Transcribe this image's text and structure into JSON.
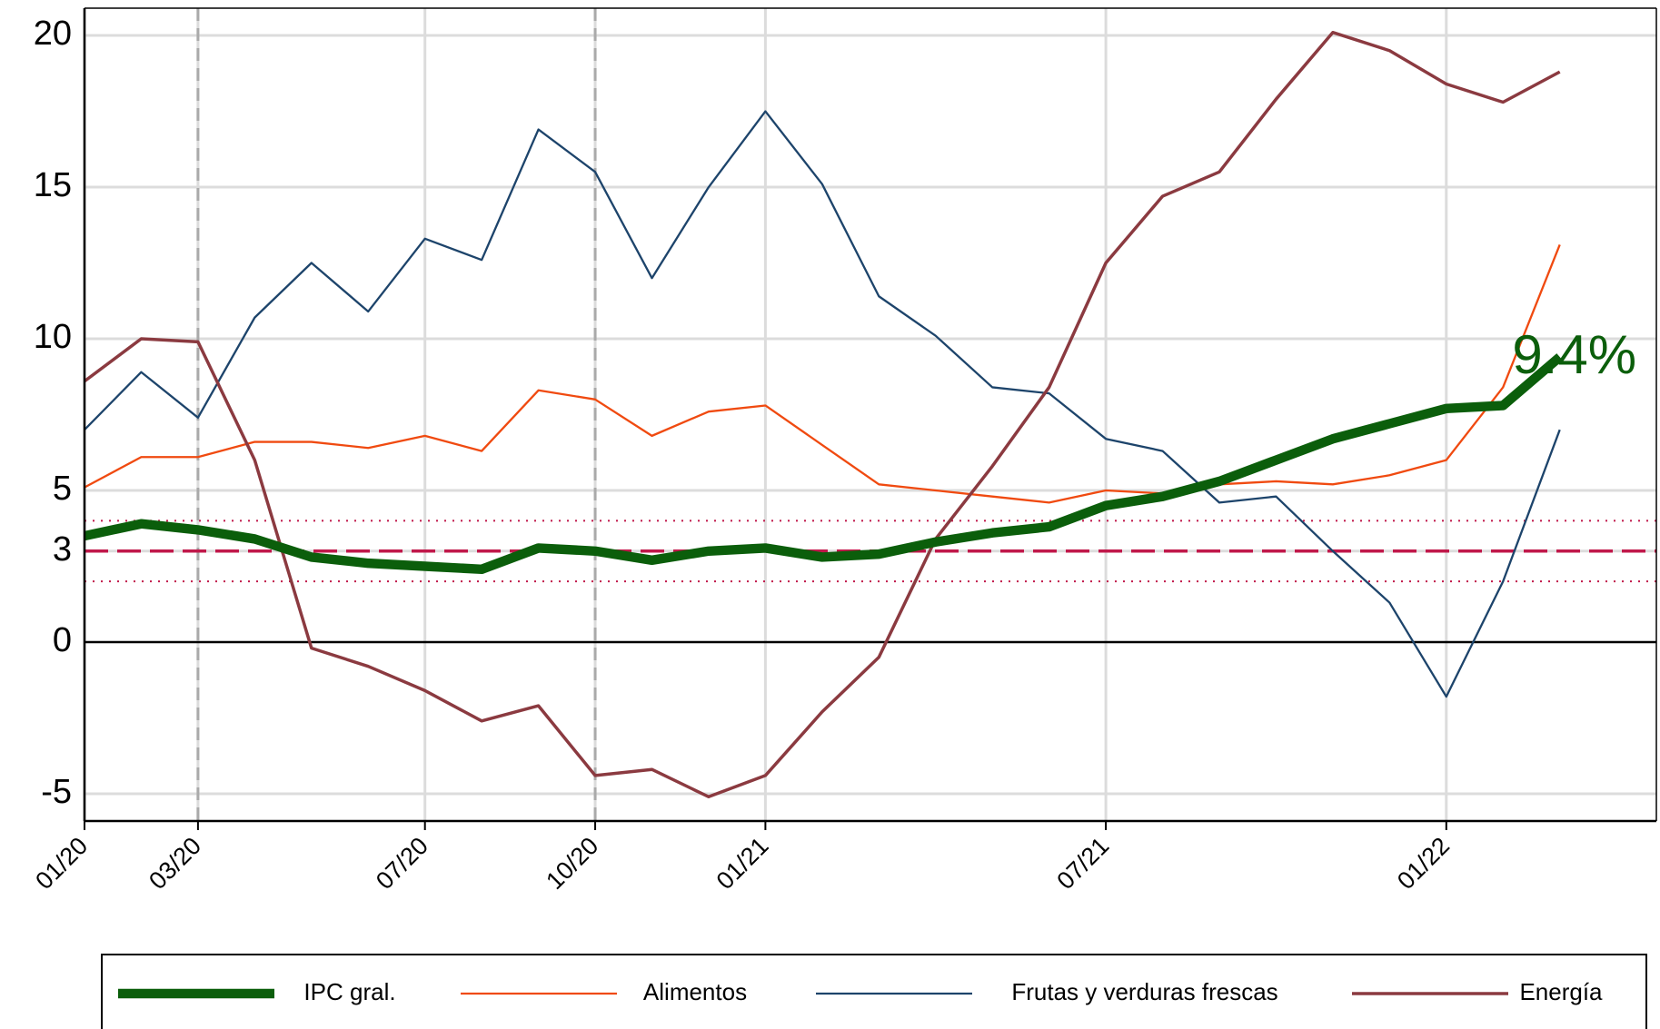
{
  "chart_data": {
    "type": "line",
    "categories": [
      "01/20",
      null,
      "03/20",
      null,
      null,
      null,
      "07/20",
      null,
      null,
      "10/20",
      null,
      null,
      "01/21",
      null,
      null,
      null,
      null,
      null,
      "07/21",
      null,
      null,
      null,
      null,
      null,
      "01/22",
      null,
      null
    ],
    "series": [
      {
        "name": "IPC gral.",
        "color": "#0b5e0b",
        "width": 9,
        "values": [
          3.5,
          3.9,
          3.7,
          3.4,
          2.8,
          2.6,
          2.5,
          2.4,
          3.1,
          3.0,
          2.7,
          3.0,
          3.1,
          2.8,
          2.9,
          3.3,
          3.6,
          3.8,
          4.5,
          4.8,
          5.3,
          6.0,
          6.7,
          7.2,
          7.7,
          7.8,
          9.4
        ]
      },
      {
        "name": "Alimentos",
        "color": "#f04a10",
        "width": 2,
        "values": [
          5.1,
          6.1,
          6.1,
          6.6,
          6.6,
          6.4,
          6.8,
          6.3,
          8.3,
          8.0,
          6.8,
          7.6,
          7.8,
          6.5,
          5.2,
          5.0,
          4.8,
          4.6,
          5.0,
          4.9,
          5.2,
          5.3,
          5.2,
          5.5,
          6.0,
          8.4,
          13.1
        ]
      },
      {
        "name": "Frutas y verduras frescas",
        "color": "#1d446b",
        "width": 2,
        "values": [
          7.0,
          8.9,
          7.4,
          10.7,
          12.5,
          10.9,
          13.3,
          12.6,
          16.9,
          15.5,
          12.0,
          15.0,
          17.5,
          15.1,
          11.4,
          10.1,
          8.4,
          8.2,
          6.7,
          6.3,
          4.6,
          4.8,
          3.0,
          1.3,
          -1.8,
          2.0,
          7.0
        ]
      },
      {
        "name": "Energía",
        "color": "#8b3a40",
        "width": 3,
        "values": [
          8.6,
          10.0,
          9.9,
          6.0,
          -0.2,
          -0.8,
          -1.6,
          -2.6,
          -2.1,
          -4.4,
          -4.2,
          -5.1,
          -4.4,
          -2.3,
          -0.5,
          3.4,
          5.8,
          8.4,
          12.5,
          14.7,
          15.5,
          17.9,
          20.1,
          19.5,
          18.4,
          17.8,
          18.8
        ]
      }
    ],
    "ylim": [
      -5.9,
      20.9
    ],
    "yticks": [
      -5,
      0,
      3,
      5,
      10,
      15,
      20
    ],
    "grid": true,
    "target": 3,
    "target_band": [
      2,
      4
    ],
    "target_color": "#c0184a",
    "vlines": [
      "03/20",
      "10/20"
    ],
    "annotation": {
      "text": "9.4%",
      "series": 0,
      "color": "#0b5e0b"
    },
    "legend": "bottom"
  }
}
